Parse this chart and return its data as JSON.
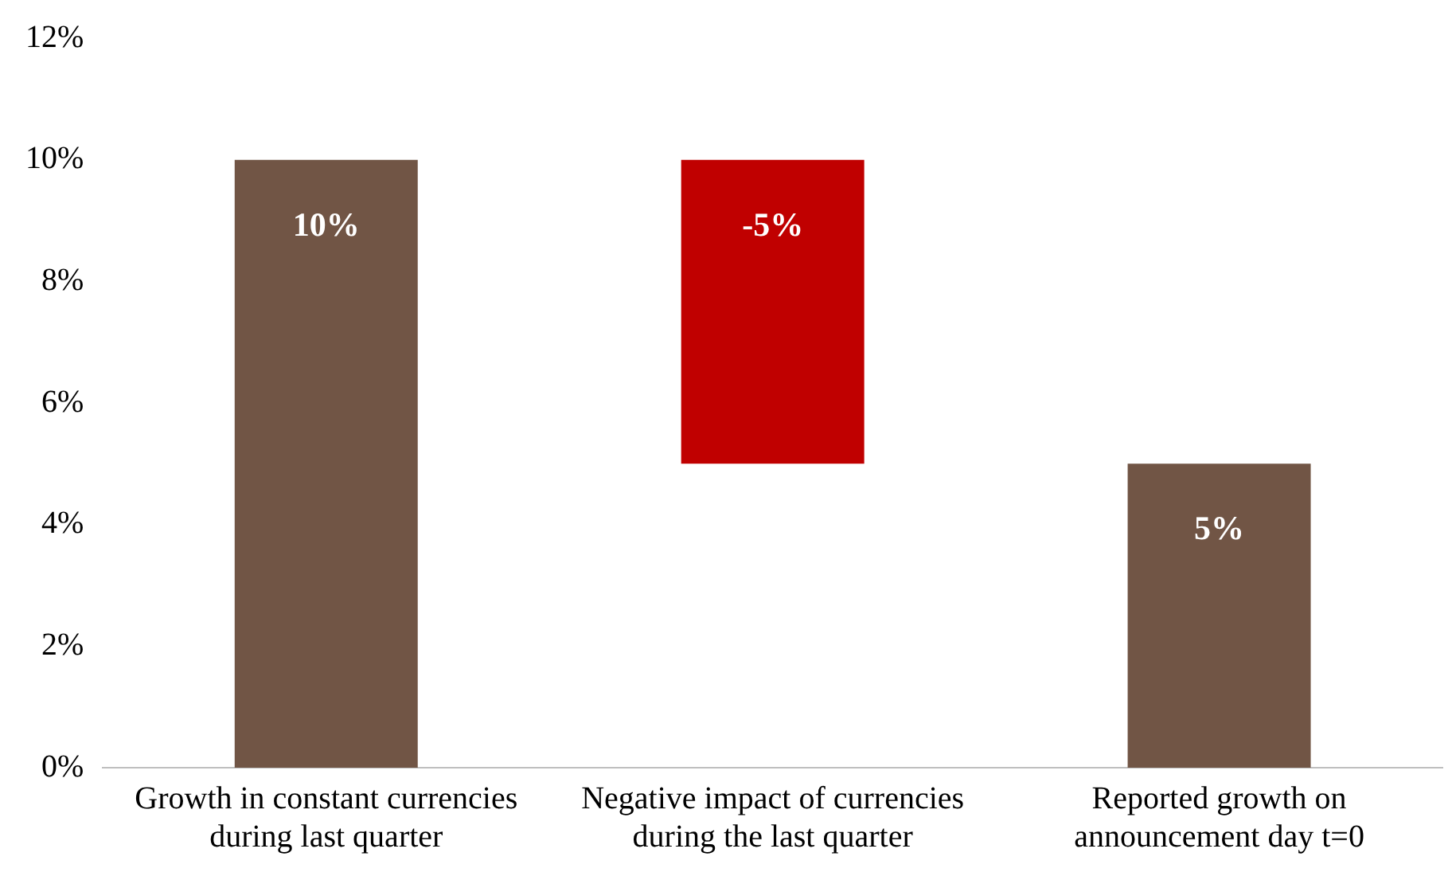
{
  "chart_data": {
    "type": "bar",
    "categories": [
      "Growth in constant currencies during last quarter",
      "Negative impact of currencies during the last quarter",
      "Reported growth on announcement day t=0"
    ],
    "values": [
      10,
      -5,
      5
    ],
    "base": [
      0,
      10,
      0
    ],
    "colors": [
      "#715545",
      "#c00000",
      "#715545"
    ],
    "value_labels": [
      "10%",
      "-5%",
      "5%"
    ],
    "ylim": [
      0,
      12
    ],
    "yticks": [
      {
        "value": 0,
        "label": "0%"
      },
      {
        "value": 2,
        "label": "2%"
      },
      {
        "value": 4,
        "label": "4%"
      },
      {
        "value": 6,
        "label": "6%"
      },
      {
        "value": 8,
        "label": "8%"
      },
      {
        "value": 10,
        "label": "10%"
      },
      {
        "value": 12,
        "label": "12%"
      }
    ],
    "grid": false,
    "legend": false
  }
}
